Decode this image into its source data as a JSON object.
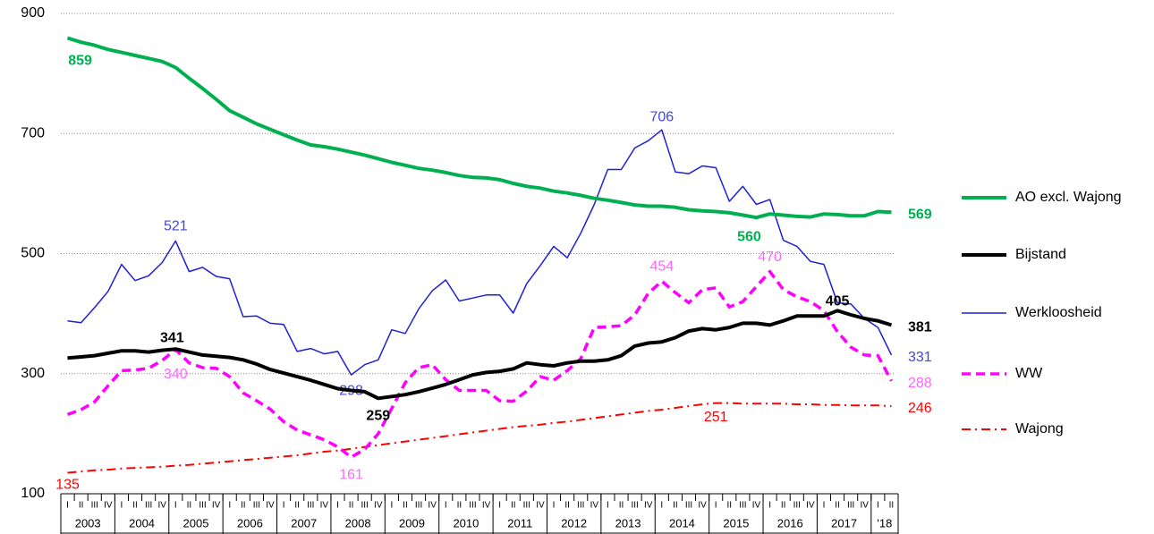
{
  "chart_data": {
    "type": "line",
    "categories": [
      "I",
      "II",
      "III",
      "IV",
      "I",
      "II",
      "III",
      "IV",
      "I",
      "II",
      "III",
      "IV",
      "I",
      "II",
      "III",
      "IV",
      "I",
      "II",
      "III",
      "IV",
      "I",
      "II",
      "III",
      "IV",
      "I",
      "II",
      "III",
      "IV",
      "I",
      "II",
      "III",
      "IV",
      "I",
      "II",
      "III",
      "IV",
      "I",
      "II",
      "III",
      "IV",
      "I",
      "II",
      "III",
      "IV",
      "I",
      "II",
      "III",
      "IV",
      "I",
      "II",
      "III",
      "IV",
      "I",
      "II",
      "III",
      "IV",
      "I",
      "II",
      "III",
      "IV",
      "I",
      "II"
    ],
    "years": [
      "2003",
      "2004",
      "2005",
      "2006",
      "2007",
      "2008",
      "2009",
      "2010",
      "2011",
      "2012",
      "2013",
      "2014",
      "2015",
      "2016",
      "2017",
      "'18"
    ],
    "ylim": [
      100,
      900
    ],
    "yticks": [
      100,
      300,
      500,
      700,
      900
    ],
    "grid": true,
    "series": [
      {
        "name": "AO excl. Wajong",
        "color": "#00b050",
        "dash": "solid",
        "width": 4,
        "label_color": "#00b050",
        "values": [
          859,
          852,
          847,
          840,
          835,
          830,
          825,
          820,
          810,
          792,
          775,
          757,
          738,
          727,
          716,
          707,
          698,
          689,
          681,
          678,
          674,
          669,
          664,
          658,
          652,
          647,
          642,
          639,
          635,
          630,
          627,
          626,
          623,
          617,
          612,
          609,
          604,
          601,
          597,
          592,
          589,
          585,
          581,
          579,
          579,
          577,
          573,
          571,
          570,
          568,
          564,
          560,
          566,
          564,
          562,
          561,
          566,
          565,
          563,
          563,
          570,
          569
        ],
        "labeled": [
          0,
          51
        ]
      },
      {
        "name": "Bijstand",
        "color": "#000000",
        "dash": "solid",
        "width": 4,
        "label_color": "#000000",
        "values": [
          326,
          328,
          330,
          334,
          338,
          338,
          336,
          339,
          341,
          336,
          331,
          329,
          327,
          323,
          316,
          307,
          301,
          295,
          289,
          282,
          275,
          272,
          270,
          259,
          262,
          265,
          270,
          276,
          282,
          290,
          298,
          302,
          304,
          308,
          318,
          315,
          313,
          318,
          321,
          321,
          323,
          330,
          346,
          351,
          353,
          360,
          371,
          375,
          373,
          377,
          384,
          384,
          381,
          388,
          396,
          396,
          396,
          405,
          398,
          392,
          388,
          381
        ],
        "labeled": [
          8,
          23,
          57
        ]
      },
      {
        "name": "Werkloosheid",
        "color": "#1f1fd6",
        "dash": "solid",
        "width": 1.5,
        "label_color": "#4444dd",
        "values": [
          388,
          385,
          410,
          437,
          482,
          455,
          463,
          485,
          521,
          470,
          477,
          462,
          458,
          395,
          396,
          384,
          382,
          337,
          342,
          333,
          337,
          298,
          315,
          323,
          373,
          367,
          408,
          438,
          456,
          421,
          426,
          431,
          431,
          401,
          450,
          480,
          512,
          493,
          534,
          582,
          640,
          640,
          676,
          688,
          706,
          636,
          633,
          646,
          643,
          587,
          612,
          582,
          590,
          522,
          512,
          487,
          482,
          418,
          416,
          392,
          377,
          331
        ],
        "labeled": [
          8,
          21,
          44
        ]
      },
      {
        "name": "WW",
        "color": "#ff00ff",
        "dash": "10,6",
        "width": 3.5,
        "label_color": "#ff66ff",
        "values": [
          232,
          240,
          253,
          280,
          305,
          306,
          309,
          322,
          340,
          318,
          310,
          309,
          295,
          268,
          255,
          241,
          220,
          206,
          198,
          190,
          178,
          161,
          174,
          200,
          242,
          285,
          310,
          315,
          290,
          272,
          272,
          272,
          255,
          254,
          271,
          295,
          289,
          305,
          325,
          377,
          378,
          380,
          398,
          434,
          454,
          435,
          418,
          440,
          443,
          411,
          420,
          445,
          470,
          440,
          428,
          420,
          405,
          370,
          344,
          331,
          330,
          288
        ],
        "labeled": [
          8,
          21,
          44,
          52
        ]
      },
      {
        "name": "Wajong",
        "color": "#ff0000",
        "dash": "10,5,2,5",
        "width": 2,
        "label_color": "#ff0000",
        "values": [
          135,
          137,
          139,
          140,
          142,
          143,
          144,
          145,
          147,
          148,
          150,
          152,
          154,
          156,
          158,
          160,
          162,
          164,
          167,
          170,
          172,
          175,
          178,
          181,
          184,
          187,
          190,
          193,
          196,
          199,
          202,
          205,
          208,
          211,
          213,
          215,
          218,
          220,
          223,
          226,
          229,
          232,
          235,
          238,
          240,
          243,
          246,
          249,
          251,
          251,
          250,
          250,
          250,
          250,
          249,
          249,
          248,
          248,
          247,
          247,
          247,
          246
        ],
        "labeled": [
          0,
          48
        ]
      }
    ]
  }
}
